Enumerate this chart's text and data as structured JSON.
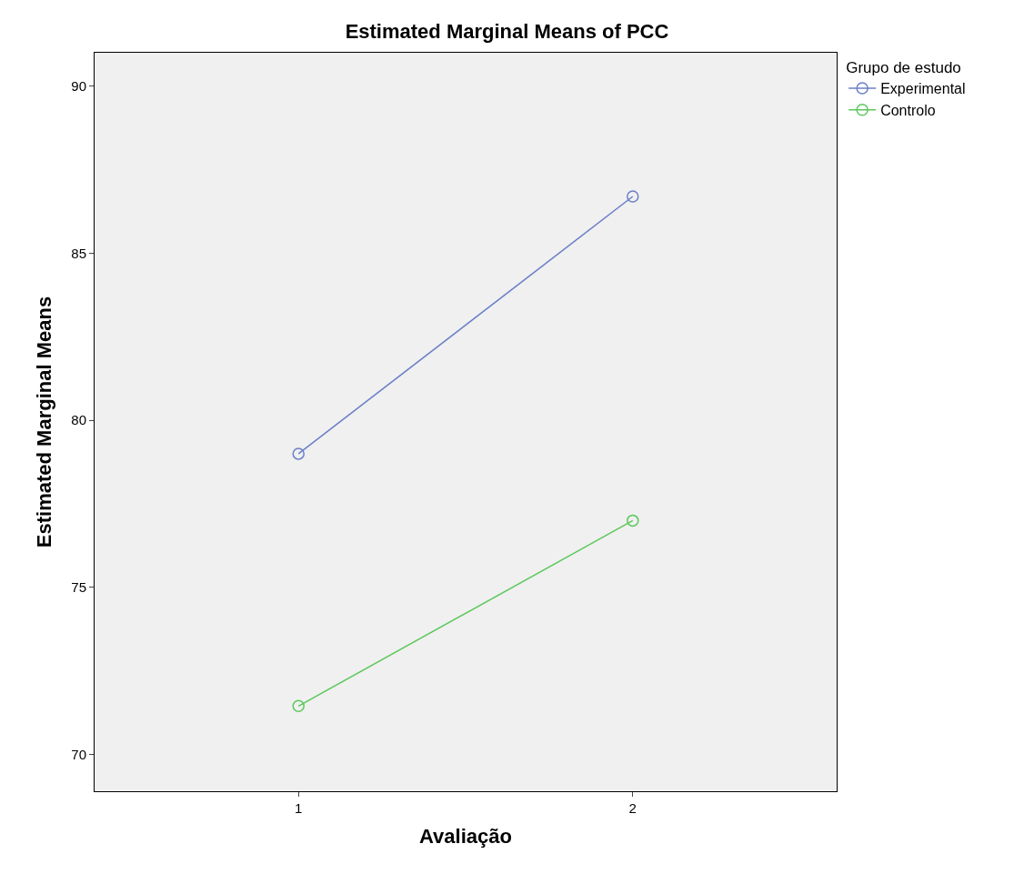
{
  "chart_data": {
    "type": "line",
    "title": "Estimated Marginal Means of PCC",
    "xlabel": "Avaliação",
    "ylabel": "Estimated Marginal Means",
    "legend_title": "Grupo de estudo",
    "x": [
      1,
      2
    ],
    "series": [
      {
        "name": "Experimental",
        "color": "#6b7fc8",
        "values": [
          79.0,
          86.7
        ]
      },
      {
        "name": "Controlo",
        "color": "#5cc85c",
        "values": [
          71.45,
          77.0
        ]
      }
    ],
    "xlim": [
      0.39,
      2.61
    ],
    "xticks": [
      1,
      2
    ],
    "ylim": [
      68.9,
      91.0
    ],
    "yticks": [
      70,
      75,
      80,
      85,
      90
    ],
    "grid": false,
    "legend": "top right",
    "marker": "circle",
    "line_style": "solid"
  }
}
